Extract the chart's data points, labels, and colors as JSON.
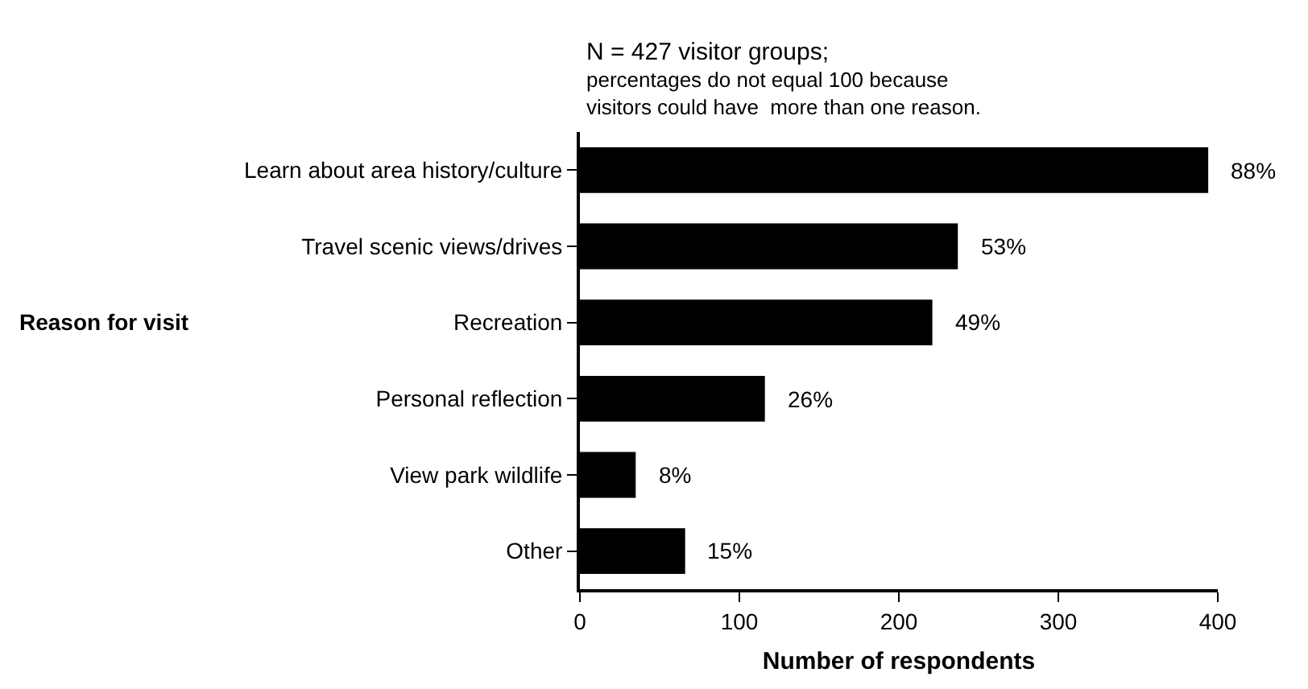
{
  "chart_data": {
    "type": "bar",
    "orientation": "horizontal",
    "title": "N = 427 visitor groups;",
    "subtitle": "percentages do not equal 100 because\nvisitors could have  more than one reason.",
    "xlabel": "Number of respondents",
    "ylabel": "Reason for visit",
    "categories": [
      "Learn about area history/culture",
      "Travel scenic views/drives",
      "Recreation",
      "Personal reflection",
      "View park wildlife",
      "Other"
    ],
    "values": [
      394,
      237,
      221,
      116,
      35,
      66
    ],
    "annotations": [
      {
        "text": "88%",
        "x": 394,
        "y": "Learn about area history/culture"
      },
      {
        "text": "53%",
        "x": 237,
        "y": "Travel scenic views/drives"
      },
      {
        "text": "49%",
        "x": 221,
        "y": "Recreation"
      },
      {
        "text": "26%",
        "x": 116,
        "y": "Personal reflection"
      },
      {
        "text": "8%",
        "x": 35,
        "y": "View park wildlife"
      },
      {
        "text": "15%",
        "x": 66,
        "y": "Other"
      }
    ],
    "color": "#000000",
    "xlim": [
      0,
      400
    ],
    "xticks": [
      0,
      100,
      200,
      300,
      400
    ]
  }
}
